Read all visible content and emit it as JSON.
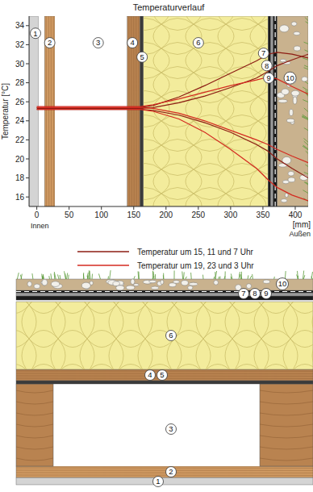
{
  "chart_data": {
    "type": "line",
    "title": "Temperaturverlauf",
    "y_label": "Temperatur [°C]",
    "x_label": "[mm]",
    "annotations": [
      "Innen",
      "Außen"
    ],
    "x": [
      0,
      160,
      180,
      220,
      260,
      300,
      340,
      358,
      372,
      395,
      420
    ],
    "xlim": [
      -12,
      420
    ],
    "xticks": [
      0,
      50,
      100,
      150,
      200,
      250,
      300,
      350,
      400
    ],
    "ylim": [
      15,
      35
    ],
    "yticks": [
      16,
      18,
      20,
      22,
      24,
      26,
      28,
      30,
      32,
      34
    ],
    "grid": false,
    "legend": "bottom",
    "series": [
      {
        "name": "Temperatur um 15, 11 und 7 Uhr",
        "color": "#8c1c13",
        "lines": [
          {
            "values": [
              25.4,
              25.4,
              25.6,
              26.5,
              27.7,
              29,
              30.3,
              31,
              31.2,
              31,
              30.6
            ]
          },
          {
            "values": [
              25.3,
              25.3,
              25.4,
              25.9,
              26.6,
              27.5,
              28.5,
              29.2,
              29.8,
              30.4,
              31
            ]
          },
          {
            "values": [
              25.2,
              25.2,
              25.1,
              24.6,
              23.8,
              22.8,
              21.5,
              20.8,
              20,
              19,
              18
            ]
          }
        ]
      },
      {
        "name": "Temperatur um 19, 23 und 3 Uhr",
        "color": "#d42a20",
        "lines": [
          {
            "values": [
              25.5,
              25.5,
              25.7,
              26.3,
              27,
              27.7,
              28.3,
              28.6,
              28.4,
              27.6,
              26.8
            ]
          },
          {
            "values": [
              25.4,
              25.4,
              25.3,
              24.8,
              24,
              23,
              22,
              21.5,
              21,
              20.3,
              19.6
            ]
          },
          {
            "values": [
              25.2,
              25.2,
              25,
              24.2,
              22.8,
              21,
              19,
              17.8,
              17,
              16.2,
              15.6
            ]
          }
        ]
      }
    ],
    "layers": [
      {
        "label": "1",
        "start": -12,
        "end": 2,
        "color": "#d4d4d4"
      },
      {
        "label": "2",
        "start": 12,
        "end": 28,
        "color": "#d09a62"
      },
      {
        "label": "3",
        "start": 28,
        "end": 140,
        "color": "#ffffff"
      },
      {
        "label": "4",
        "start": 140,
        "end": 160,
        "color": "#b98350"
      },
      {
        "label": "5",
        "start": 160,
        "end": 165,
        "color": "#3a3a3a"
      },
      {
        "label": "6",
        "start": 165,
        "end": 358,
        "color": "#f3ec9c"
      },
      {
        "label": "7",
        "start": 358,
        "end": 362,
        "color": "#1a1a1a"
      },
      {
        "label": "8",
        "start": 362,
        "end": 366,
        "color": "#9a9a9a"
      },
      {
        "label": "9",
        "start": 366,
        "end": 372,
        "color": "#1a1a1a"
      },
      {
        "label": "10",
        "start": 372,
        "end": 420,
        "color": "#c9b28e"
      }
    ]
  }
}
